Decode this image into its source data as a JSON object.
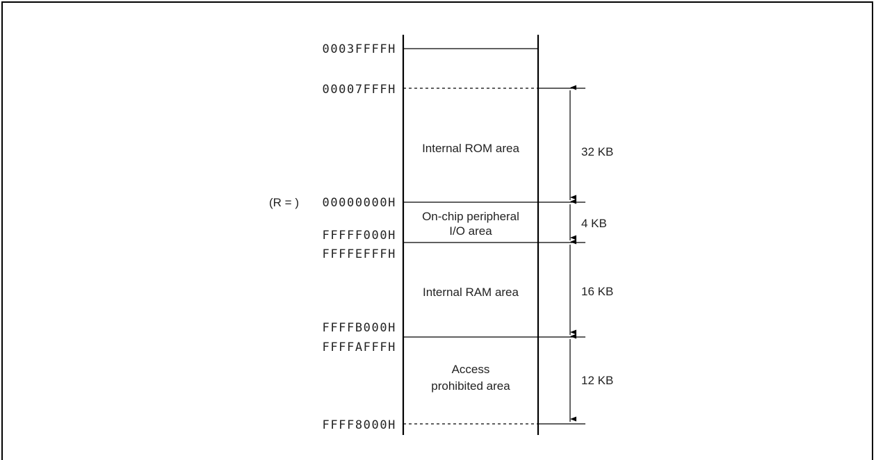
{
  "addresses": {
    "a0003ffff": "0003FFFFH",
    "a00007fff": "00007FFFH",
    "r_prefix": "(R = )",
    "a00000000": "00000000H",
    "affff000": "FFFFF000H",
    "afffefff": "FFFFEFFFH",
    "afffb000": "FFFFB000H",
    "afffafff": "FFFFAFFFH",
    "afff8000": "FFFF8000H"
  },
  "areas": {
    "rom": "Internal ROM area",
    "io_line1": "On-chip peripheral",
    "io_line2": "I/O area",
    "ram": "Internal RAM area",
    "prohibited_line1": "Access",
    "prohibited_line2": "prohibited area"
  },
  "sizes": {
    "rom": "32 KB",
    "io": "4 KB",
    "ram": "16 KB",
    "prohibited": "12 KB"
  }
}
